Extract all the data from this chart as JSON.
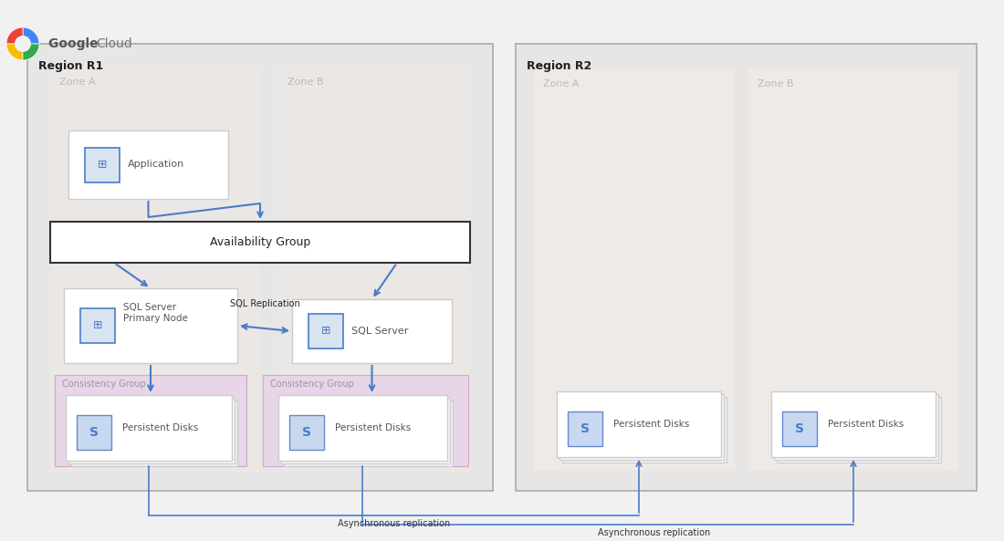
{
  "bg_color": "#f1f1f1",
  "title_logo_text": "Google Cloud",
  "region1_label": "Region R1",
  "region2_label": "Region R2",
  "zone_a_label": "Zone A",
  "zone_b_label": "Zone B",
  "app_label": "Application",
  "avail_group_label": "Availability Group",
  "sql_primary_label": "SQL Server\nPrimary Node",
  "sql_server_label": "SQL Server",
  "persist_disk_label": "Persistent Disks",
  "consistency_group_label": "Consistency Group",
  "sql_replication_label": "SQL Replication",
  "async_replication_label": "Asynchronous replication",
  "region1_color": "#e8e8e8",
  "region2_color": "#e8e8e8",
  "zone_bg_color": "#ede9e9",
  "zone_r2_bg_color": "#edeae8",
  "consistency_bg_color": "#e8d8e8",
  "box_white": "#ffffff",
  "border_gray": "#aaaaaa",
  "arrow_color": "#4a7cc7",
  "text_dark": "#222222",
  "text_gray": "#aaaaaa",
  "text_zone": "#bbbbbb"
}
